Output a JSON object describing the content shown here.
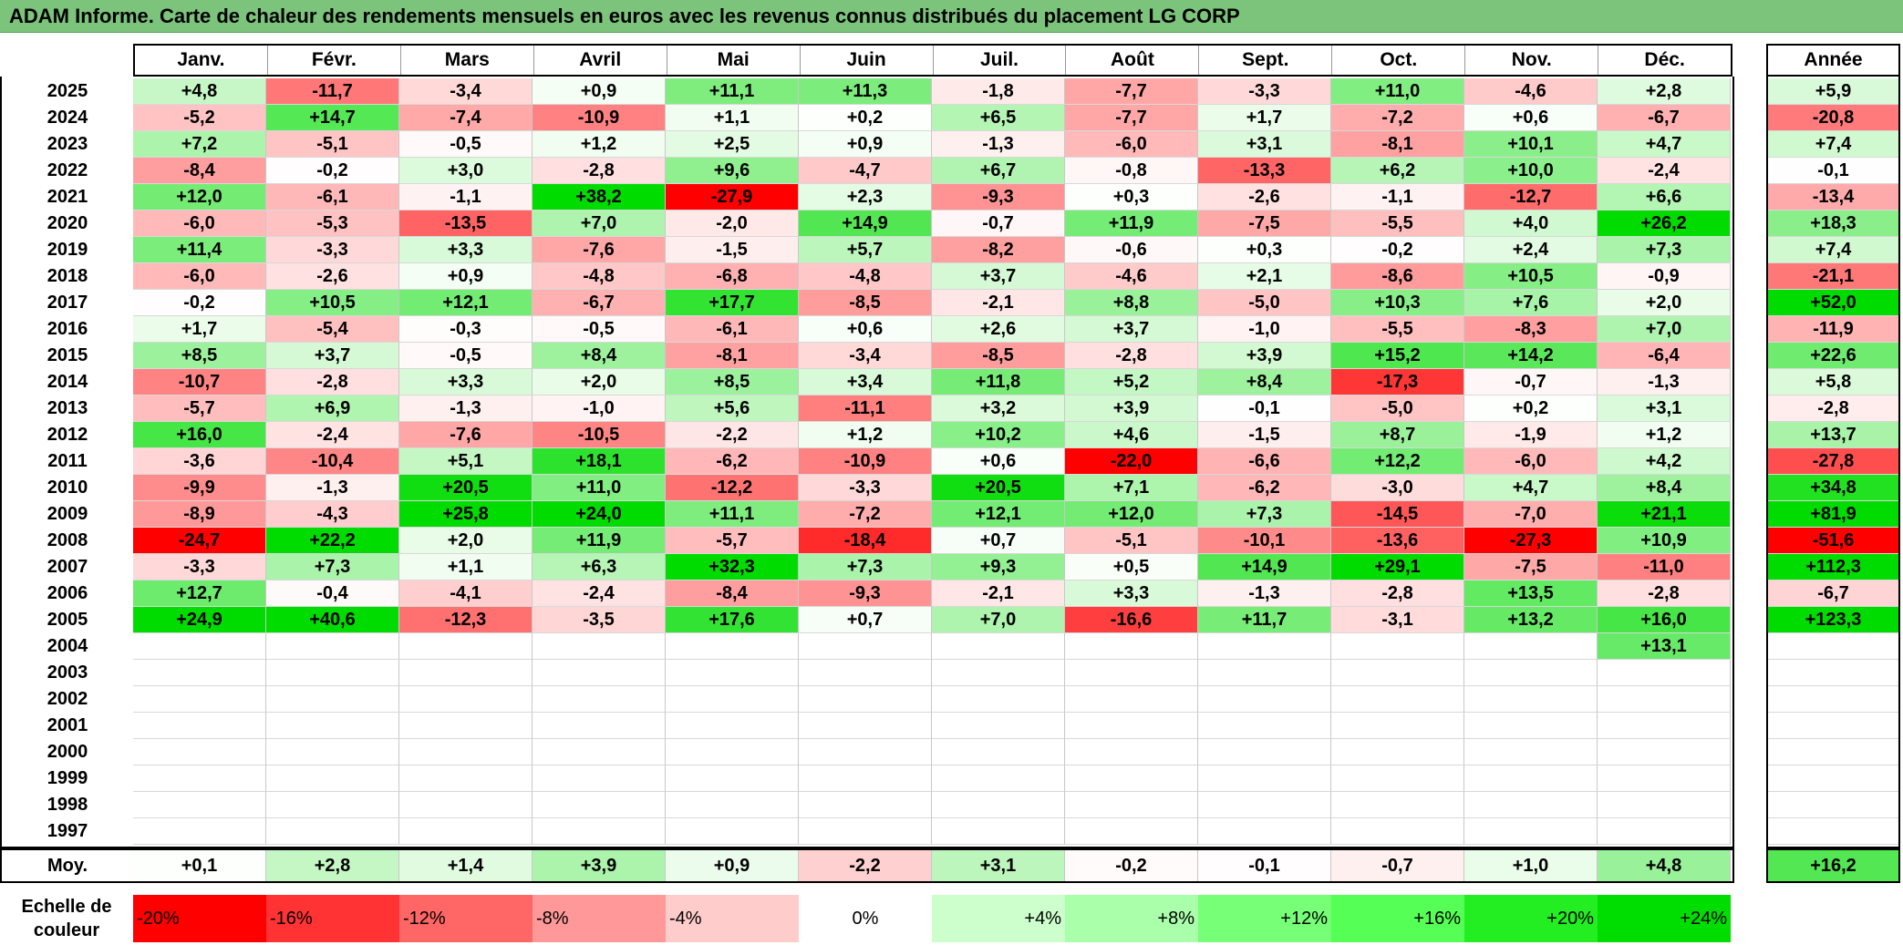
{
  "title": "ADAM Informe. Carte de chaleur des rendements mensuels en euros avec les revenus connus distribués du placement LG CORP",
  "months": [
    "Janv.",
    "Févr.",
    "Mars",
    "Avril",
    "Mai",
    "Juin",
    "Juil.",
    "Août",
    "Sept.",
    "Oct.",
    "Nov.",
    "Déc."
  ],
  "annee_header": "Année",
  "moy_label": "Moy.",
  "legend_title_line1": "Echelle de",
  "legend_title_line2": "couleur",
  "chart_data": {
    "type": "heatmap",
    "title": "ADAM Informe. Carte de chaleur des rendements mensuels en euros avec les revenus connus distribués du placement LG CORP",
    "years": [
      "2025",
      "2024",
      "2023",
      "2022",
      "2021",
      "2020",
      "2019",
      "2018",
      "2017",
      "2016",
      "2015",
      "2014",
      "2013",
      "2012",
      "2011",
      "2010",
      "2009",
      "2008",
      "2007",
      "2006",
      "2005",
      "2004",
      "2003",
      "2002",
      "2001",
      "2000",
      "1999",
      "1998",
      "1997"
    ],
    "values": [
      [
        "+4,8",
        "-11,7",
        "-3,4",
        "+0,9",
        "+11,1",
        "+11,3",
        "-1,8",
        "-7,7",
        "-3,3",
        "+11,0",
        "-4,6",
        "+2,8"
      ],
      [
        "-5,2",
        "+14,7",
        "-7,4",
        "-10,9",
        "+1,1",
        "+0,2",
        "+6,5",
        "-7,7",
        "+1,7",
        "-7,2",
        "+0,6",
        "-6,7"
      ],
      [
        "+7,2",
        "-5,1",
        "-0,5",
        "+1,2",
        "+2,5",
        "+0,9",
        "-1,3",
        "-6,0",
        "+3,1",
        "-8,1",
        "+10,1",
        "+4,7"
      ],
      [
        "-8,4",
        "-0,2",
        "+3,0",
        "-2,8",
        "+9,6",
        "-4,7",
        "+6,7",
        "-0,8",
        "-13,3",
        "+6,2",
        "+10,0",
        "-2,4"
      ],
      [
        "+12,0",
        "-6,1",
        "-1,1",
        "+38,2",
        "-27,9",
        "+2,3",
        "-9,3",
        "+0,3",
        "-2,6",
        "-1,1",
        "-12,7",
        "+6,6"
      ],
      [
        "-6,0",
        "-5,3",
        "-13,5",
        "+7,0",
        "-2,0",
        "+14,9",
        "-0,7",
        "+11,9",
        "-7,5",
        "-5,5",
        "+4,0",
        "+26,2"
      ],
      [
        "+11,4",
        "-3,3",
        "+3,3",
        "-7,6",
        "-1,5",
        "+5,7",
        "-8,2",
        "-0,6",
        "+0,3",
        "-0,2",
        "+2,4",
        "+7,3"
      ],
      [
        "-6,0",
        "-2,6",
        "+0,9",
        "-4,8",
        "-6,8",
        "-4,8",
        "+3,7",
        "-4,6",
        "+2,1",
        "-8,6",
        "+10,5",
        "-0,9"
      ],
      [
        "-0,2",
        "+10,5",
        "+12,1",
        "-6,7",
        "+17,7",
        "-8,5",
        "-2,1",
        "+8,8",
        "-5,0",
        "+10,3",
        "+7,6",
        "+2,0"
      ],
      [
        "+1,7",
        "-5,4",
        "-0,3",
        "-0,5",
        "-6,1",
        "+0,6",
        "+2,6",
        "+3,7",
        "-1,0",
        "-5,5",
        "-8,3",
        "+7,0"
      ],
      [
        "+8,5",
        "+3,7",
        "-0,5",
        "+8,4",
        "-8,1",
        "-3,4",
        "-8,5",
        "-2,8",
        "+3,9",
        "+15,2",
        "+14,2",
        "-6,4"
      ],
      [
        "-10,7",
        "-2,8",
        "+3,3",
        "+2,0",
        "+8,5",
        "+3,4",
        "+11,8",
        "+5,2",
        "+8,4",
        "-17,3",
        "-0,7",
        "-1,3"
      ],
      [
        "-5,7",
        "+6,9",
        "-1,3",
        "-1,0",
        "+5,6",
        "-11,1",
        "+3,2",
        "+3,9",
        "-0,1",
        "-5,0",
        "+0,2",
        "+3,1"
      ],
      [
        "+16,0",
        "-2,4",
        "-7,6",
        "-10,5",
        "-2,2",
        "+1,2",
        "+10,2",
        "+4,6",
        "-1,5",
        "+8,7",
        "-1,9",
        "+1,2"
      ],
      [
        "-3,6",
        "-10,4",
        "+5,1",
        "+18,1",
        "-6,2",
        "-10,9",
        "+0,6",
        "-22,0",
        "-6,6",
        "+12,2",
        "-6,0",
        "+4,2"
      ],
      [
        "-9,9",
        "-1,3",
        "+20,5",
        "+11,0",
        "-12,2",
        "-3,3",
        "+20,5",
        "+7,1",
        "-6,2",
        "-3,0",
        "+4,7",
        "+8,4"
      ],
      [
        "-8,9",
        "-4,3",
        "+25,8",
        "+24,0",
        "+11,1",
        "-7,2",
        "+12,1",
        "+12,0",
        "+7,3",
        "-14,5",
        "-7,0",
        "+21,1"
      ],
      [
        "-24,7",
        "+22,2",
        "+2,0",
        "+11,9",
        "-5,7",
        "-18,4",
        "+0,7",
        "-5,1",
        "-10,1",
        "-13,6",
        "-27,3",
        "+10,9"
      ],
      [
        "-3,3",
        "+7,3",
        "+1,1",
        "+6,3",
        "+32,3",
        "+7,3",
        "+9,3",
        "+0,5",
        "+14,9",
        "+29,1",
        "-7,5",
        "-11,0"
      ],
      [
        "+12,7",
        "-0,4",
        "-4,1",
        "-2,4",
        "-8,4",
        "-9,3",
        "-2,1",
        "+3,3",
        "-1,3",
        "-2,8",
        "+13,5",
        "-2,8"
      ],
      [
        "+24,9",
        "+40,6",
        "-12,3",
        "-3,5",
        "+17,6",
        "+0,7",
        "+7,0",
        "-16,6",
        "+11,7",
        "-3,1",
        "+13,2",
        "+16,0"
      ],
      [
        "",
        "",
        "",
        "",
        "",
        "",
        "",
        "",
        "",
        "",
        "",
        "+13,1"
      ],
      [
        "",
        "",
        "",
        "",
        "",
        "",
        "",
        "",
        "",
        "",
        "",
        ""
      ],
      [
        "",
        "",
        "",
        "",
        "",
        "",
        "",
        "",
        "",
        "",
        "",
        ""
      ],
      [
        "",
        "",
        "",
        "",
        "",
        "",
        "",
        "",
        "",
        "",
        "",
        ""
      ],
      [
        "",
        "",
        "",
        "",
        "",
        "",
        "",
        "",
        "",
        "",
        "",
        ""
      ],
      [
        "",
        "",
        "",
        "",
        "",
        "",
        "",
        "",
        "",
        "",
        "",
        ""
      ],
      [
        "",
        "",
        "",
        "",
        "",
        "",
        "",
        "",
        "",
        "",
        "",
        ""
      ],
      [
        "",
        "",
        "",
        "",
        "",
        "",
        "",
        "",
        "",
        "",
        "",
        ""
      ]
    ],
    "annual": [
      "+5,9",
      "-20,8",
      "+7,4",
      "-0,1",
      "-13,4",
      "+18,3",
      "+7,4",
      "-21,1",
      "+52,0",
      "-11,9",
      "+22,6",
      "+5,8",
      "-2,8",
      "+13,7",
      "-27,8",
      "+34,8",
      "+81,9",
      "-51,6",
      "+112,3",
      "-6,7",
      "+123,3",
      "",
      "",
      "",
      "",
      "",
      "",
      "",
      ""
    ],
    "monthly_average": [
      "+0,1",
      "+2,8",
      "+1,4",
      "+3,9",
      "+0,9",
      "-2,2",
      "+3,1",
      "-0,2",
      "-0,1",
      "-0,7",
      "+1,0",
      "+4,8"
    ],
    "annual_average": "+16,2",
    "color_scale": {
      "labels": [
        "-20%",
        "-16%",
        "-12%",
        "-8%",
        "-4%",
        "0%",
        "+4%",
        "+8%",
        "+12%",
        "+16%",
        "+20%",
        "+24%"
      ],
      "colors": [
        "#ff0000",
        "#ff3333",
        "#ff6666",
        "#ff9999",
        "#ffcccc",
        "#ffffff",
        "#ccffcc",
        "#aaffaa",
        "#77ff77",
        "#55ff55",
        "#22ee22",
        "#00dd00"
      ]
    }
  }
}
